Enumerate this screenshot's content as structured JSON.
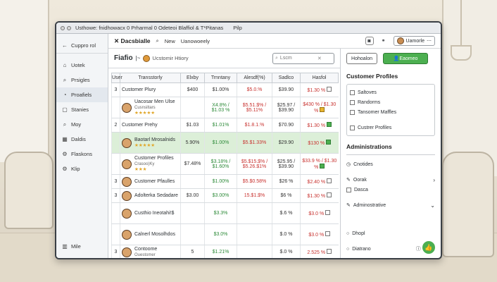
{
  "window": {
    "title": "Usthowe: fnidhowacx 0 Prharmal 0 Odeteoi Blaffiol & T*Pitanas",
    "extra": "Pilp"
  },
  "sidebar": {
    "items": [
      {
        "label": "Cuppro rol",
        "icon": "arrow-left-icon"
      },
      {
        "label": "Uotek",
        "icon": "home-icon"
      },
      {
        "label": "Prsigles",
        "icon": "search-icon"
      },
      {
        "label": "Proafiels",
        "icon": "chart-icon"
      },
      {
        "label": "Stanies",
        "icon": "box-icon"
      },
      {
        "label": "Moy",
        "icon": "search-icon"
      },
      {
        "label": "Daldis",
        "icon": "grid-icon"
      },
      {
        "label": "Flaskons",
        "icon": "gear-icon"
      },
      {
        "label": "Klip",
        "icon": "gear-icon"
      }
    ],
    "bottom_label": "Mile"
  },
  "topbar": {
    "brand": "Dacsbialle",
    "nav_new": "New",
    "nav_more": "Uanowoeely",
    "user_name": "Uamorle"
  },
  "center": {
    "title": "Fiafio",
    "subtitle": "Ucstomir Htiory",
    "search_placeholder": "Lscm",
    "columns": [
      "User",
      "Transstorly",
      "Elxby",
      "Trnntany",
      "Alesdf(%)",
      "Sadlco",
      "Hasfol"
    ],
    "rows": [
      {
        "num": "3",
        "name": "Customer Plury",
        "sub": "",
        "elxby": "$400",
        "trn": "$1.00%",
        "ales": "$5.0.%",
        "sadlco": "$39.90",
        "hasfol": "$1.30 %",
        "trn_c": "k",
        "ales_c": "r",
        "check": "off",
        "hl": false,
        "tall": false,
        "face": false
      },
      {
        "num": "",
        "name": "Uacosar Men Ulse",
        "sub": "Cusnsiltars",
        "stars": "★★★★★",
        "elxby": "",
        "trn": "X4.8% / $1.03 %",
        "ales": "$5.51.$% / $5.11%",
        "sadlco": "$25.97 / $39.90",
        "hasfol": "$430 % / $1.30 %",
        "trn_c": "g",
        "ales_c": "r",
        "check": "y",
        "hl": false,
        "tall": true,
        "face": true
      },
      {
        "num": "2",
        "name": "Customer Prehy",
        "sub": "",
        "elxby": "$1.03",
        "trn": "$1.01%",
        "ales": "$1.8.1.%",
        "sadlco": "$70.90",
        "hasfol": "$1.30 %",
        "trn_c": "g",
        "ales_c": "r",
        "check": "on",
        "hl": false,
        "tall": false,
        "face": false
      },
      {
        "num": "",
        "name": "Baotarl Mrosalnids",
        "sub": "",
        "stars": "★★★★★",
        "elxby": "5.90%",
        "trn": "$1.00%",
        "ales": "$5.$1.33%",
        "sadlco": "$29.90",
        "hasfol": "$130 %",
        "trn_c": "g",
        "ales_c": "r",
        "check": "on",
        "hl": true,
        "tall": true,
        "face": true
      },
      {
        "num": "",
        "name": "Customer Profiles",
        "sub": "Crasoo)Ky",
        "stars": "★★★",
        "elxby": "$7.48%",
        "trn": "$3.18% / $1.60%",
        "ales": "$5.$15.$% / $5.26.$1%",
        "sadlco": "$25.95 / $39.90",
        "hasfol": "$33.9 % / $1.30 %",
        "trn_c": "g",
        "ales_c": "r",
        "check": "on",
        "hl": false,
        "tall": true,
        "face": true
      },
      {
        "num": "3",
        "name": "Customer Pfaulles",
        "sub": "",
        "elxby": "",
        "trn": "$1.00%",
        "ales": "$5.$0.58%",
        "sadlco": "$26 %",
        "hasfol": "$2.40 %",
        "trn_c": "g",
        "ales_c": "r",
        "check": "off",
        "hl": false,
        "tall": false,
        "face": true
      },
      {
        "num": "3",
        "name": "Adolterka Sedadare",
        "sub": "",
        "elxby": "$3.00",
        "trn": "$3.00%",
        "ales": "15.$1.$%",
        "sadlco": "$6 %",
        "hasfol": "$1.30 %",
        "trn_c": "g",
        "ales_c": "r",
        "check": "off",
        "hl": false,
        "tall": false,
        "face": true
      },
      {
        "num": "",
        "name": "Custhio Ineotahi!$",
        "sub": "",
        "elxby": "",
        "trn": "$3.3%",
        "ales": "",
        "sadlco": "$.6 %",
        "hasfol": "$3.0 %",
        "trn_c": "g",
        "ales_c": "r",
        "check": "off",
        "hl": false,
        "tall": true,
        "face": true
      },
      {
        "num": "",
        "name": "Calnerl Mosolhdos",
        "sub": "",
        "elxby": "",
        "trn": "$3.0%",
        "ales": "",
        "sadlco": "$.0 %",
        "hasfol": "$3.0 %",
        "trn_c": "g",
        "ales_c": "r",
        "check": "off",
        "hl": false,
        "tall": true,
        "face": true
      },
      {
        "num": "3",
        "name": "Contoome",
        "sub": "Ouestomer",
        "elxby": "5",
        "trn": "$1.21%",
        "ales": "",
        "sadlco": "$.0 %",
        "hasfol": "2.525 %",
        "trn_c": "g",
        "ales_c": "r",
        "check": "off",
        "hl": false,
        "tall": false,
        "face": true
      }
    ]
  },
  "right": {
    "btn_left": "Hohoalon",
    "btn_right": "Eaomeo",
    "heading1": "Customer Profiles",
    "card1": [
      "Saltoves",
      "Randorms",
      "Tansomer Maffles",
      "Custrer Profiles"
    ],
    "heading2": "Administrations",
    "list2": [
      "Cnotides",
      "Oorak",
      "Dasca",
      "Adminostrative"
    ],
    "bottom": [
      "Dhopl",
      "Diatrano"
    ]
  },
  "colors": {
    "accent_green": "#4caf50",
    "positive": "#2e8b3a",
    "negative": "#c8322f",
    "highlight_row": "#dcefd8"
  }
}
